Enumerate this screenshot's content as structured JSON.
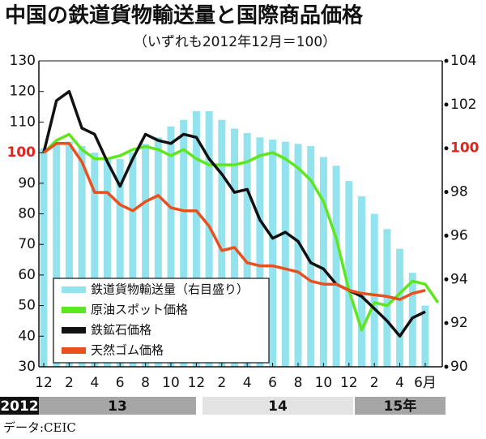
{
  "chart_data": {
    "type": "bar-line",
    "title": "中国の鉄道貨物輸送量と国際商品価格",
    "subtitle": "（いずれも2012年12月＝100）",
    "source": "データ:CEIC",
    "categories": [
      "12",
      null,
      "2",
      null,
      "4",
      null,
      "6",
      null,
      "8",
      null,
      "10",
      null,
      "12",
      null,
      "2",
      null,
      "4",
      null,
      "6",
      null,
      "8",
      null,
      "10",
      null,
      "12",
      null,
      "2",
      null,
      "4",
      null,
      "6月",
      null
    ],
    "years": [
      "2012",
      "13",
      "14",
      "15年"
    ],
    "ylim": [
      30,
      130
    ],
    "yticks": [
      30,
      40,
      50,
      60,
      70,
      80,
      90,
      100,
      110,
      120,
      130
    ],
    "y2lim": [
      90,
      104
    ],
    "y2ticks": [
      90,
      92,
      94,
      96,
      98,
      100,
      102,
      104
    ],
    "highlight": {
      "value": 100,
      "color": "#e0231b"
    },
    "series": [
      {
        "name": "鉄道貨物輸送量（右目盛り）",
        "color": "#93e3ee",
        "axis": "y2",
        "kind": "bar",
        "values": [
          100,
          100.2,
          100.3,
          100.1,
          99.8,
          99.5,
          99.5,
          99.8,
          100.2,
          100.5,
          101,
          101.3,
          101.7,
          101.7,
          101.3,
          100.9,
          100.7,
          100.5,
          100.4,
          100.3,
          100.2,
          100.1,
          99.6,
          99.2,
          98.5,
          97.8,
          97,
          96.3,
          95.4,
          94.3,
          92.8,
          null
        ]
      },
      {
        "name": "原油スポット価格",
        "color": "#5ee61e",
        "kind": "line",
        "values": [
          100,
          104,
          106,
          101,
          98,
          98,
          99,
          101,
          102,
          101,
          99,
          101,
          98,
          96,
          96,
          96,
          97,
          99,
          100,
          98,
          95,
          91,
          84,
          72,
          55,
          42,
          51,
          50,
          54,
          58,
          57,
          51
        ]
      },
      {
        "name": "鉄鉱石価格",
        "color": "#111111",
        "kind": "line",
        "values": [
          100,
          117,
          120,
          108,
          106,
          97,
          89,
          98,
          106,
          104,
          103,
          106,
          105,
          98,
          93,
          87,
          88,
          78,
          72,
          74,
          71,
          64,
          62,
          57,
          55,
          53,
          49,
          45,
          40,
          46,
          48,
          null
        ]
      },
      {
        "name": "天然ゴム価格",
        "color": "#e8511f",
        "kind": "line",
        "values": [
          100,
          103,
          103,
          97,
          87,
          87,
          83,
          81,
          84,
          86,
          82,
          81,
          81,
          76,
          68,
          69,
          64,
          63,
          63,
          62,
          61,
          58,
          57,
          57,
          55,
          54,
          53.5,
          53,
          52,
          54,
          55,
          null
        ]
      }
    ]
  }
}
